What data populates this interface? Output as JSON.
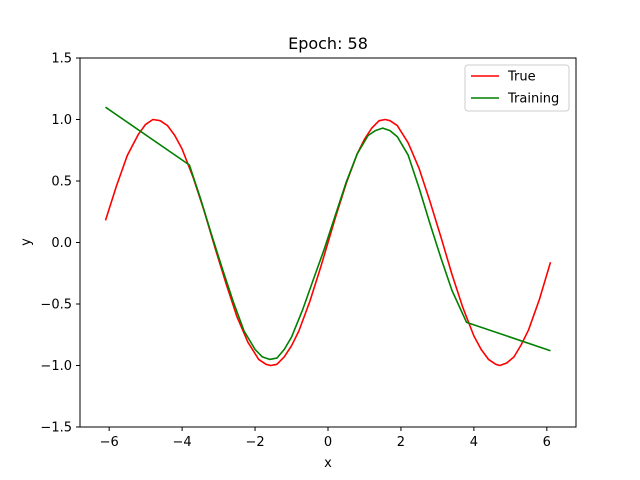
{
  "chart_data": {
    "type": "line",
    "title": "Epoch: 58",
    "xlabel": "x",
    "ylabel": "y",
    "xlim": [
      -6.8,
      6.8
    ],
    "ylim": [
      -1.5,
      1.5
    ],
    "x_ticks": [
      -6,
      -4,
      -2,
      0,
      2,
      4,
      6
    ],
    "x_tick_labels": [
      "−6",
      "−4",
      "−2",
      "0",
      "2",
      "4",
      "6"
    ],
    "y_ticks": [
      -1.5,
      -1.0,
      -0.5,
      0.0,
      0.5,
      1.0,
      1.5
    ],
    "y_tick_labels": [
      "−1.5",
      "−1.0",
      "−0.5",
      "0.0",
      "0.5",
      "1.0",
      "1.5"
    ],
    "grid": false,
    "legend_position": "top-right",
    "series": [
      {
        "name": "True",
        "color": "#ff0000",
        "x": [
          -6.1,
          -5.8,
          -5.5,
          -5.2,
          -5.0,
          -4.8,
          -4.6,
          -4.4,
          -4.2,
          -4.0,
          -3.7,
          -3.4,
          -3.1,
          -2.8,
          -2.5,
          -2.2,
          -1.9,
          -1.7,
          -1.57,
          -1.4,
          -1.2,
          -1.0,
          -0.8,
          -0.5,
          -0.2,
          0.0,
          0.2,
          0.5,
          0.8,
          1.0,
          1.2,
          1.4,
          1.57,
          1.7,
          1.9,
          2.2,
          2.5,
          2.8,
          3.1,
          3.4,
          3.7,
          4.0,
          4.2,
          4.4,
          4.6,
          4.71,
          4.9,
          5.1,
          5.3,
          5.5,
          5.8,
          6.1
        ],
        "y": [
          0.18,
          0.46,
          0.71,
          0.88,
          0.96,
          1.0,
          0.99,
          0.95,
          0.87,
          0.76,
          0.53,
          0.26,
          -0.04,
          -0.33,
          -0.6,
          -0.81,
          -0.95,
          -0.99,
          -1.0,
          -0.99,
          -0.93,
          -0.84,
          -0.72,
          -0.48,
          -0.2,
          0.0,
          0.2,
          0.48,
          0.72,
          0.84,
          0.93,
          0.99,
          1.0,
          0.99,
          0.95,
          0.81,
          0.6,
          0.33,
          0.04,
          -0.26,
          -0.53,
          -0.76,
          -0.87,
          -0.95,
          -0.99,
          -1.0,
          -0.98,
          -0.93,
          -0.83,
          -0.71,
          -0.46,
          -0.16
        ]
      },
      {
        "name": "Training",
        "color": "#008000",
        "x": [
          -6.1,
          -3.8,
          -3.5,
          -3.2,
          -2.9,
          -2.6,
          -2.3,
          -2.0,
          -1.8,
          -1.6,
          -1.4,
          -1.2,
          -1.0,
          -0.7,
          -0.4,
          -0.1,
          0.0,
          0.2,
          0.5,
          0.8,
          1.1,
          1.3,
          1.5,
          1.7,
          1.9,
          2.2,
          2.5,
          2.8,
          3.1,
          3.4,
          3.8,
          6.1
        ],
        "y": [
          1.1,
          0.63,
          0.36,
          0.07,
          -0.21,
          -0.48,
          -0.72,
          -0.87,
          -0.93,
          -0.95,
          -0.94,
          -0.87,
          -0.77,
          -0.55,
          -0.3,
          -0.05,
          0.04,
          0.22,
          0.49,
          0.72,
          0.87,
          0.91,
          0.93,
          0.91,
          0.86,
          0.71,
          0.44,
          0.15,
          -0.13,
          -0.39,
          -0.65,
          -0.88
        ]
      }
    ]
  }
}
